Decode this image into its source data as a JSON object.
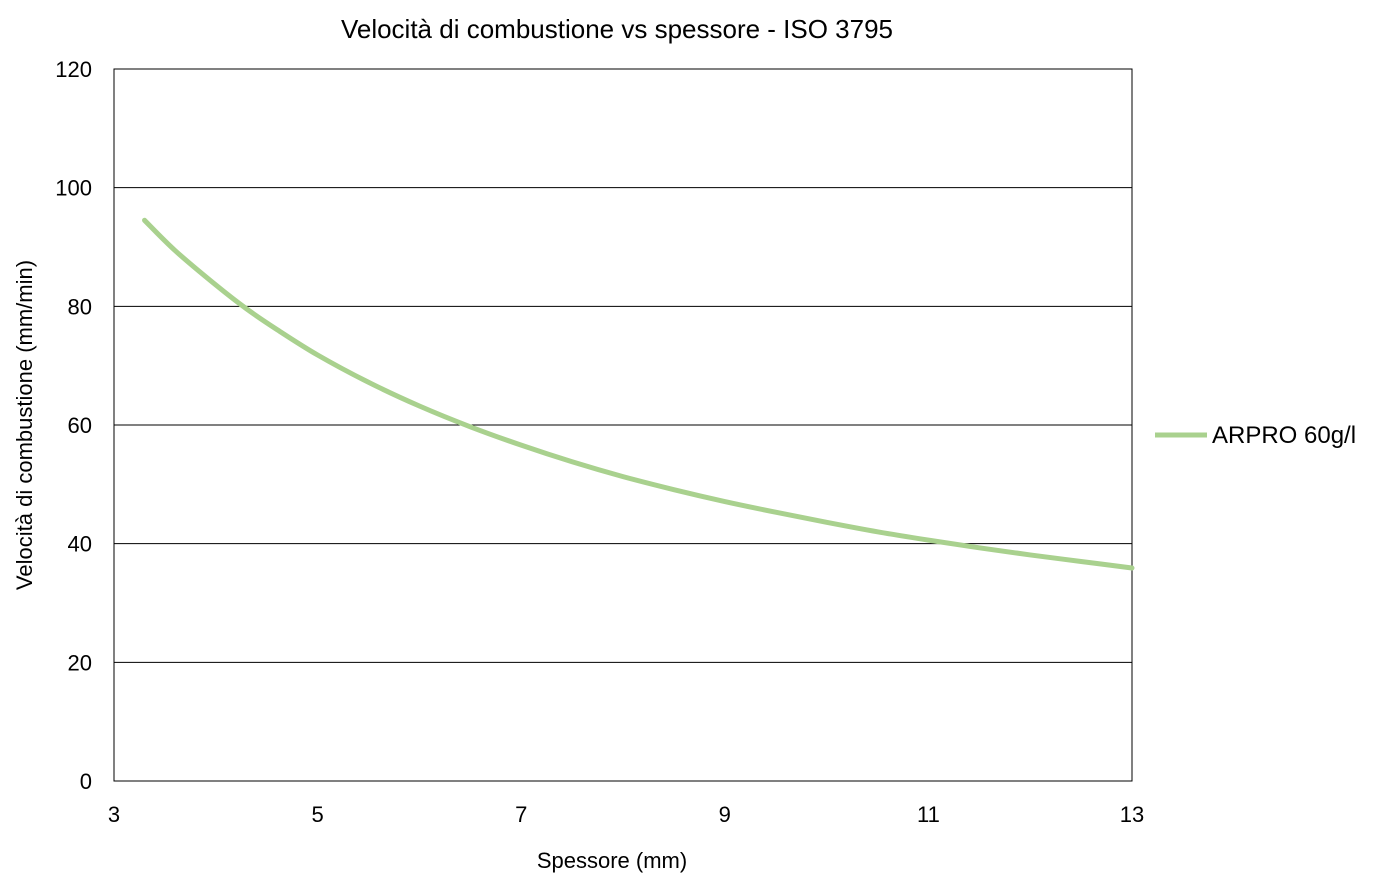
{
  "chart_data": {
    "type": "line",
    "title": "Velocità di combustione vs spessore - ISO 3795",
    "xlabel": "Spessore (mm)",
    "ylabel": "Velocità di combustione (mm/min)",
    "xlim": [
      3,
      13
    ],
    "ylim": [
      0,
      120
    ],
    "x_ticks": [
      3,
      5,
      7,
      9,
      11,
      13
    ],
    "y_ticks": [
      0,
      20,
      40,
      60,
      80,
      100,
      120
    ],
    "grid": "horizontal",
    "legend_position": "right",
    "series": [
      {
        "name": "ARPRO 60g/l",
        "color": "#a9d18e",
        "x": [
          3.3,
          3.6,
          4.0,
          4.3,
          4.6,
          5.0,
          5.5,
          6.0,
          6.5,
          7.0,
          7.5,
          8.0,
          8.5,
          9.0,
          9.5,
          10.0,
          10.5,
          11.0,
          11.5,
          12.0,
          12.5,
          13.0
        ],
        "y": [
          94.5,
          89.4,
          83.6,
          79.6,
          76.1,
          71.8,
          67.2,
          63.2,
          59.7,
          56.6,
          53.8,
          51.3,
          49.1,
          47.1,
          45.3,
          43.6,
          42.0,
          40.6,
          39.3,
          38.1,
          37.0,
          35.9
        ]
      }
    ]
  }
}
